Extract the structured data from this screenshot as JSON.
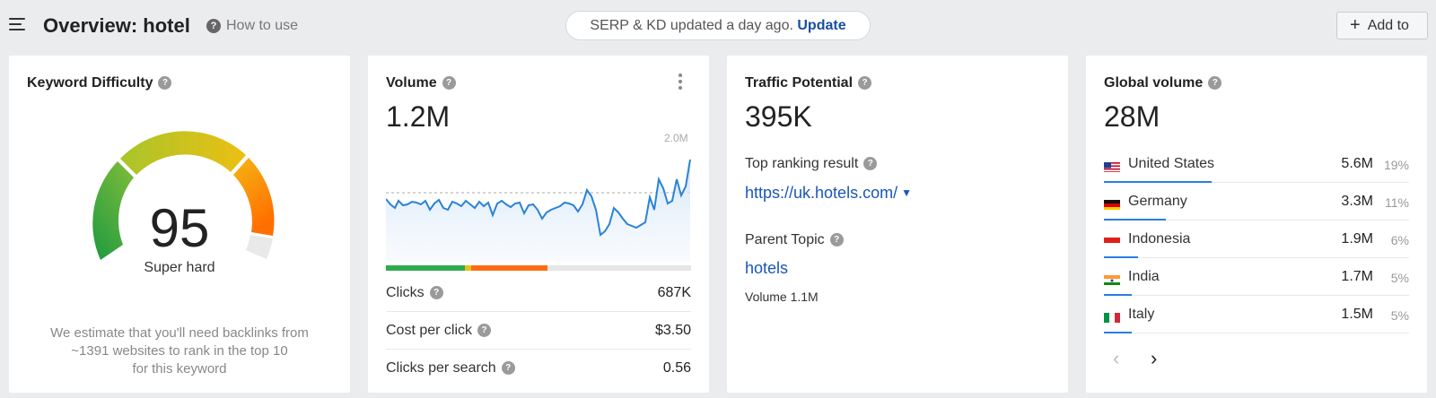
{
  "header": {
    "title": "Overview: hotel",
    "how_to_use": "How to use",
    "serp_status": "SERP & KD updated a day ago.",
    "update_label": "Update",
    "add_to_label": "Add to"
  },
  "kd": {
    "title": "Keyword Difficulty",
    "value": "95",
    "difficulty_level": 95,
    "label": "Super hard",
    "description_lines": [
      "We estimate that you'll need backlinks from",
      "~1391 websites to rank in the top 10",
      "for this keyword"
    ]
  },
  "volume": {
    "title": "Volume",
    "value": "1.2M",
    "chart_max_label": "2.0M",
    "clicks_split": {
      "organic_green": 26,
      "yellow": 2,
      "paid_orange": 25
    },
    "metrics": [
      {
        "label": "Clicks",
        "value": "687K"
      },
      {
        "label": "Cost per click",
        "value": "$3.50"
      },
      {
        "label": "Clicks per search",
        "value": "0.56"
      }
    ]
  },
  "traffic": {
    "title": "Traffic Potential",
    "value": "395K",
    "top_ranking_label": "Top ranking result",
    "top_ranking_url": "https://uk.hotels.com/",
    "parent_topic_label": "Parent Topic",
    "parent_topic": "hotels",
    "parent_volume": "Volume 1.1M"
  },
  "global": {
    "title": "Global volume",
    "value": "28M",
    "countries": [
      {
        "name": "United States",
        "volume": "5.6M",
        "pct": "19%",
        "share": 19,
        "flag": "us-flag-icon"
      },
      {
        "name": "Germany",
        "volume": "3.3M",
        "pct": "11%",
        "share": 11,
        "flag": "de-flag-icon"
      },
      {
        "name": "Indonesia",
        "volume": "1.9M",
        "pct": "6%",
        "share": 6,
        "flag": "id-flag-icon"
      },
      {
        "name": "India",
        "volume": "1.7M",
        "pct": "5%",
        "share": 5,
        "flag": "in-flag-icon"
      },
      {
        "name": "Italy",
        "volume": "1.5M",
        "pct": "5%",
        "share": 5,
        "flag": "it-flag-icon"
      }
    ]
  },
  "colors": {
    "accent": "#1a56b8",
    "kd_green": "#27a046",
    "kd_yellow": "#e6c21b",
    "kd_orange": "#ff7a00",
    "clicks_green": "#2eab4f",
    "clicks_orange": "#ff6c14"
  }
}
